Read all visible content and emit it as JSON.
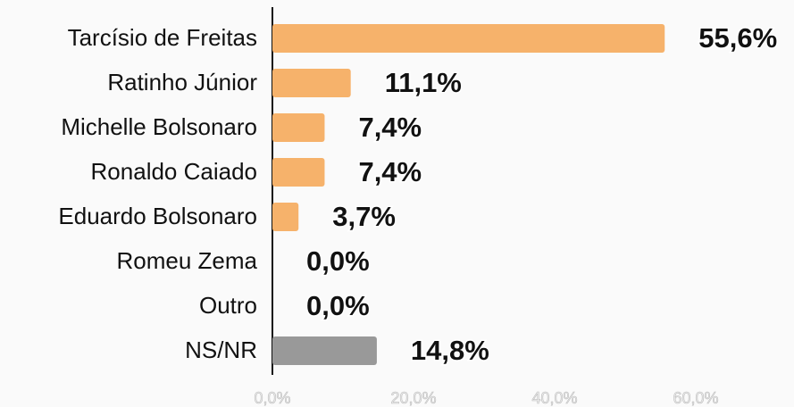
{
  "chart_data": {
    "type": "bar",
    "orientation": "horizontal",
    "categories": [
      "Tarcísio de Freitas",
      "Ratinho Júnior",
      "Michelle Bolsonaro",
      "Ronaldo Caiado",
      "Eduardo Bolsonaro",
      "Romeu Zema",
      "Outro",
      "NS/NR"
    ],
    "values": [
      55.6,
      11.1,
      7.4,
      7.4,
      3.7,
      0,
      0,
      14.8
    ],
    "value_labels": [
      "55,6%",
      "11,1%",
      "7,4%",
      "7,4%",
      "3,7%",
      "0,0%",
      "0,0%",
      "14,8%"
    ],
    "colors": [
      "#f6b26b",
      "#f6b26b",
      "#f6b26b",
      "#f6b26b",
      "#f6b26b",
      "#f6b26b",
      "#f6b26b",
      "#999999"
    ],
    "xlim": [
      0,
      70
    ],
    "xticks": [
      {
        "value": 0,
        "label": "0,0%"
      },
      {
        "value": 20,
        "label": "20,0%"
      },
      {
        "value": 40,
        "label": "40,0%"
      },
      {
        "value": 60,
        "label": "60,0%"
      }
    ]
  }
}
